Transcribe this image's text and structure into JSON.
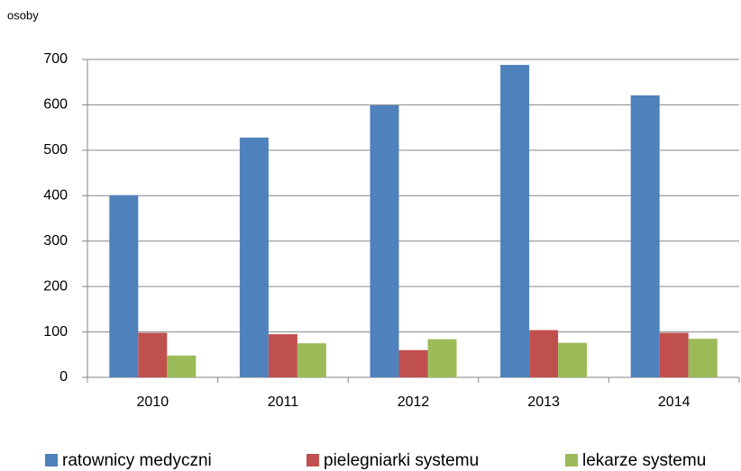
{
  "chart_data": {
    "type": "bar",
    "y_label": "osoby",
    "categories": [
      "2010",
      "2011",
      "2012",
      "2013",
      "2014"
    ],
    "series": [
      {
        "name": "ratownicy medyczni",
        "color": "#4f81bd",
        "values": [
          401,
          528,
          599,
          688,
          621
        ]
      },
      {
        "name": "pielegniarki systemu",
        "color": "#c0504d",
        "values": [
          98,
          95,
          60,
          104,
          98
        ]
      },
      {
        "name": "lekarze systemu",
        "color": "#9bbb59",
        "values": [
          48,
          75,
          84,
          76,
          85
        ]
      }
    ],
    "ylim": [
      0,
      700
    ],
    "yticks": [
      0,
      100,
      200,
      300,
      400,
      500,
      600,
      700
    ],
    "grid": true,
    "legend": "bottom"
  }
}
